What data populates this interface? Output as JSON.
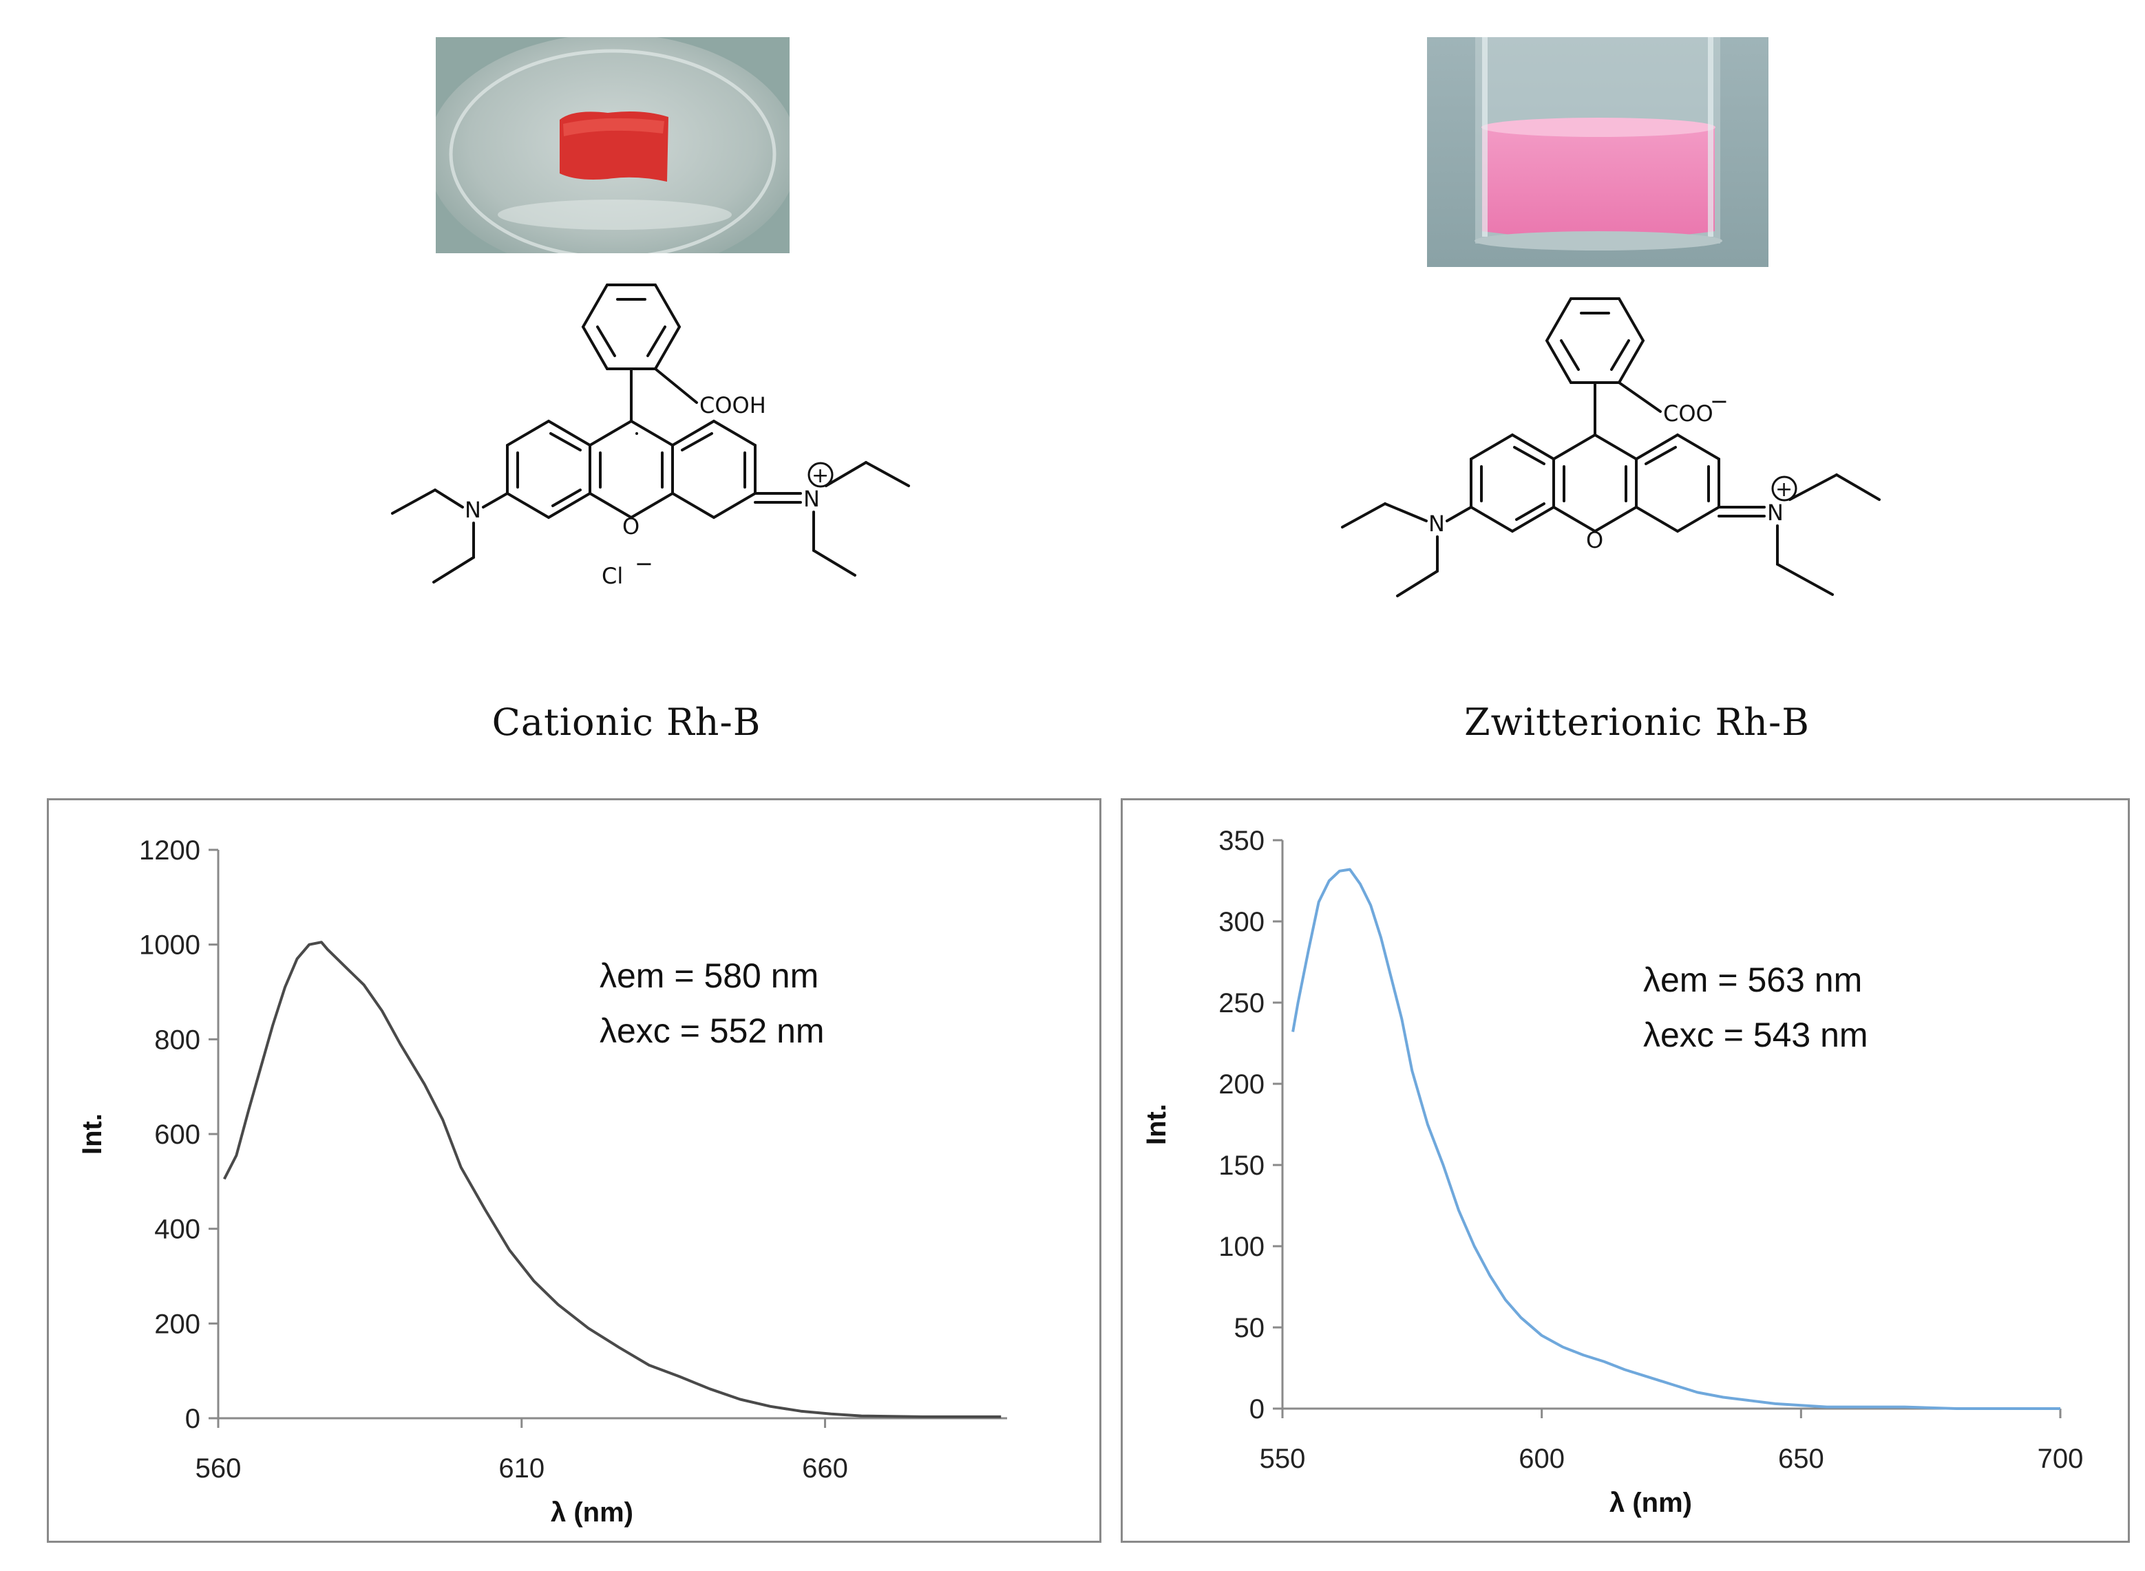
{
  "panels": [
    {
      "photo": {
        "description_icon": "red-gel-photo"
      },
      "structure": {
        "substituents": {
          "acid": "COOH",
          "ring_oxygen": "O",
          "amine_n": "N",
          "iminium_n": "N",
          "charge": "+",
          "counter_ion": "Cl",
          "counter_charge": "−"
        }
      },
      "label": "Cationic Rh-B"
    },
    {
      "photo": {
        "description_icon": "pink-solution-photo"
      },
      "structure": {
        "substituents": {
          "acid": "COO",
          "acid_charge": "−",
          "ring_oxygen": "O",
          "amine_n": "N",
          "iminium_n": "N",
          "charge": "+"
        }
      },
      "label": "Zwitterionic Rh-B"
    }
  ],
  "colors": {
    "series_left": "#4a4a4a",
    "series_right": "#6fa8dc"
  },
  "chart_data": [
    {
      "type": "line",
      "xlabel": "λ (nm)",
      "ylabel": "Int.",
      "xlim": [
        560,
        690
      ],
      "ylim": [
        0,
        1200
      ],
      "xticks": [
        560,
        610,
        660
      ],
      "yticks": [
        0,
        200,
        400,
        600,
        800,
        1000,
        1200
      ],
      "grid": false,
      "annotations": [
        "λem = 580 nm",
        "λexc = 552 nm"
      ],
      "series": [
        {
          "x": [
            561,
            563,
            565,
            567,
            569,
            571,
            573,
            575,
            577,
            578,
            580,
            582,
            584,
            587,
            590,
            594,
            597,
            600,
            604,
            608,
            612,
            616,
            621,
            626,
            631,
            636,
            641,
            646,
            651,
            656,
            661,
            666,
            671,
            676,
            681,
            689
          ],
          "values": [
            505,
            555,
            650,
            740,
            830,
            910,
            970,
            1000,
            1005,
            990,
            965,
            940,
            915,
            860,
            790,
            705,
            630,
            530,
            440,
            355,
            290,
            240,
            190,
            150,
            112,
            88,
            62,
            40,
            25,
            15,
            9,
            5,
            4,
            3,
            3,
            3
          ]
        }
      ]
    },
    {
      "type": "line",
      "xlabel": "λ (nm)",
      "ylabel": "Int.",
      "xlim": [
        550,
        700
      ],
      "ylim": [
        0,
        350
      ],
      "xticks": [
        550,
        600,
        650,
        700
      ],
      "yticks": [
        0,
        50,
        100,
        150,
        200,
        250,
        300,
        350
      ],
      "grid": false,
      "annotations": [
        "λem = 563 nm",
        "λexc = 543 nm"
      ],
      "series": [
        {
          "x": [
            552,
            553,
            555,
            557,
            559,
            561,
            563,
            565,
            567,
            569,
            571,
            573,
            575,
            578,
            581,
            584,
            587,
            590,
            593,
            596,
            600,
            604,
            608,
            612,
            616,
            620,
            625,
            630,
            635,
            640,
            645,
            650,
            655,
            660,
            670,
            680,
            690,
            700
          ],
          "values": [
            232,
            250,
            282,
            312,
            325,
            331,
            332,
            323,
            310,
            290,
            265,
            240,
            208,
            175,
            150,
            122,
            100,
            82,
            67,
            56,
            45,
            38,
            33,
            29,
            24,
            20,
            15,
            10,
            7,
            5,
            3,
            2,
            1,
            1,
            1,
            0,
            0,
            0
          ]
        }
      ]
    }
  ]
}
